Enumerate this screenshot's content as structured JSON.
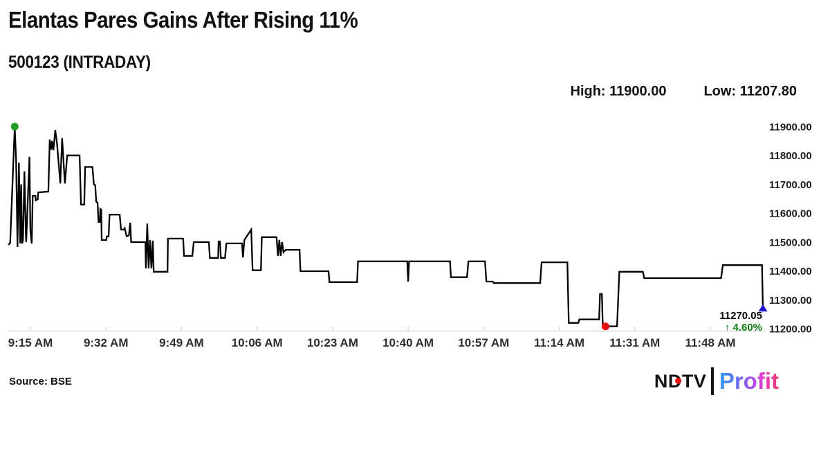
{
  "header": {
    "title": "Elantas Pares Gains After Rising 11%",
    "subtitle": "500123 (INTRADAY)",
    "high_label": "High: 11900.00",
    "low_label": "Low: 11207.80"
  },
  "chart_data": {
    "type": "line",
    "title": "500123 (INTRADAY)",
    "x_axis": {
      "tick_labels": [
        "9:15 AM",
        "9:32 AM",
        "9:49 AM",
        "10:06 AM",
        "10:23 AM",
        "10:40 AM",
        "10:57 AM",
        "11:14 AM",
        "11:31 AM",
        "11:48 AM"
      ],
      "unit": "time of day"
    },
    "y_axis": {
      "tick_labels": [
        "11900.00",
        "11800.00",
        "11700.00",
        "11600.00",
        "11500.00",
        "11400.00",
        "11300.00",
        "11200.00"
      ],
      "tick_values": [
        11900,
        11800,
        11700,
        11600,
        11500,
        11400,
        11300,
        11200
      ],
      "min": 11200,
      "max": 11900,
      "grid": false
    },
    "high": 11900.0,
    "low": 11207.8,
    "last": 11270.05,
    "change_pct": 4.6,
    "line_color": "#000000",
    "series": [
      {
        "name": "500123 intraday price",
        "color": "#000000",
        "points": [
          [
            0,
            11490
          ],
          [
            0.4,
            11497
          ],
          [
            1.4,
            11900
          ],
          [
            1.7,
            11783
          ],
          [
            2.0,
            11483
          ],
          [
            2.3,
            11775
          ],
          [
            2.6,
            11495
          ],
          [
            2.8,
            11700
          ],
          [
            3.0,
            11495
          ],
          [
            3.2,
            11507
          ],
          [
            3.5,
            11745
          ],
          [
            3.8,
            11531
          ],
          [
            3.9,
            11500
          ],
          [
            4.6,
            11795
          ],
          [
            4.8,
            11540
          ],
          [
            5.1,
            11495
          ],
          [
            5.3,
            11660
          ],
          [
            5.9,
            11660
          ],
          [
            6.0,
            11645
          ],
          [
            6.4,
            11648
          ],
          [
            6.5,
            11672
          ],
          [
            8.7,
            11675
          ],
          [
            9.0,
            11855
          ],
          [
            9.3,
            11820
          ],
          [
            9.5,
            11850
          ],
          [
            9.8,
            11818
          ],
          [
            10.2,
            11888
          ],
          [
            10.6,
            11840
          ],
          [
            11.3,
            11703
          ],
          [
            11.7,
            11860
          ],
          [
            12.3,
            11703
          ],
          [
            12.8,
            11800
          ],
          [
            15.5,
            11800
          ],
          [
            15.8,
            11630
          ],
          [
            16.5,
            11630
          ],
          [
            16.7,
            11760
          ],
          [
            18.3,
            11760
          ],
          [
            18.6,
            11700
          ],
          [
            18.9,
            11697
          ],
          [
            19.1,
            11640
          ],
          [
            19.4,
            11636
          ],
          [
            19.6,
            11570
          ],
          [
            19.9,
            11570
          ],
          [
            20.0,
            11615
          ],
          [
            20.2,
            11612
          ],
          [
            20.3,
            11507
          ],
          [
            21.3,
            11507
          ],
          [
            21.4,
            11519
          ],
          [
            21.8,
            11519
          ],
          [
            22.0,
            11595
          ],
          [
            24.2,
            11595
          ],
          [
            24.5,
            11543
          ],
          [
            25.1,
            11543
          ],
          [
            25.3,
            11548
          ],
          [
            25.7,
            11520
          ],
          [
            26.2,
            11523
          ],
          [
            26.5,
            11567
          ],
          [
            26.7,
            11500
          ],
          [
            29.8,
            11500
          ],
          [
            29.9,
            11409
          ],
          [
            30.2,
            11564
          ],
          [
            30.5,
            11409
          ],
          [
            30.8,
            11507
          ],
          [
            31.1,
            11409
          ],
          [
            31.4,
            11505
          ],
          [
            31.6,
            11397
          ],
          [
            34.6,
            11397
          ],
          [
            34.7,
            11512
          ],
          [
            38.0,
            11512
          ],
          [
            38.2,
            11452
          ],
          [
            40.0,
            11452
          ],
          [
            40.3,
            11500
          ],
          [
            43.6,
            11500
          ],
          [
            43.8,
            11445
          ],
          [
            45.6,
            11445
          ],
          [
            45.7,
            11502
          ],
          [
            46.0,
            11502
          ],
          [
            46.2,
            11445
          ],
          [
            47.1,
            11445
          ],
          [
            47.4,
            11495
          ],
          [
            50.8,
            11495
          ],
          [
            51.0,
            11447
          ],
          [
            51.3,
            11507
          ],
          [
            52.8,
            11543
          ],
          [
            53.1,
            11402
          ],
          [
            54.9,
            11402
          ],
          [
            55.1,
            11517
          ],
          [
            58.3,
            11517
          ],
          [
            58.6,
            11452
          ],
          [
            58.9,
            11507
          ],
          [
            59.2,
            11452
          ],
          [
            59.5,
            11500
          ],
          [
            59.8,
            11465
          ],
          [
            60.3,
            11473
          ],
          [
            63.3,
            11473
          ],
          [
            63.5,
            11399
          ],
          [
            69.6,
            11399
          ],
          [
            69.8,
            11361
          ],
          [
            75.8,
            11361
          ],
          [
            76.0,
            11433
          ],
          [
            86.7,
            11433
          ],
          [
            86.9,
            11363
          ],
          [
            87.1,
            11433
          ],
          [
            96.0,
            11433
          ],
          [
            96.2,
            11378
          ],
          [
            99.7,
            11378
          ],
          [
            100.0,
            11433
          ],
          [
            103.6,
            11433
          ],
          [
            103.9,
            11363
          ],
          [
            105.3,
            11363
          ],
          [
            105.5,
            11358
          ],
          [
            115.6,
            11358
          ],
          [
            115.9,
            11430
          ],
          [
            121.5,
            11430
          ],
          [
            121.8,
            11220
          ],
          [
            123.9,
            11220
          ],
          [
            124.1,
            11232
          ],
          [
            128.4,
            11232
          ],
          [
            128.6,
            11320
          ],
          [
            129.0,
            11320
          ],
          [
            129.2,
            11207.8
          ],
          [
            132.3,
            11207.8
          ],
          [
            132.8,
            11397
          ],
          [
            137.9,
            11397
          ],
          [
            138.2,
            11375
          ],
          [
            154.9,
            11375
          ],
          [
            155.3,
            11420
          ],
          [
            163.8,
            11420
          ],
          [
            164,
            11270.05
          ]
        ]
      }
    ],
    "markers": {
      "open": {
        "t": 1.4,
        "value": 11900,
        "color": "#209b23",
        "shape": "circle"
      },
      "low": {
        "t": 129.8,
        "value": 11207.8,
        "color": "#e90f0f",
        "shape": "circle"
      },
      "last": {
        "t": 164,
        "value": 11270.05,
        "color": "#2213cd",
        "shape": "triangle-up"
      }
    },
    "annotation": {
      "price": "11270.05",
      "change": "↑ 4.60%",
      "change_color": "#0d7f12"
    },
    "axis_color": "#d8d8d8",
    "tick_color": "#cfcfcf"
  },
  "footer": {
    "source": "Source: BSE",
    "logo": {
      "ndtv": "NDTV",
      "profit": "Profit",
      "dot_color": "#e8100c"
    }
  }
}
